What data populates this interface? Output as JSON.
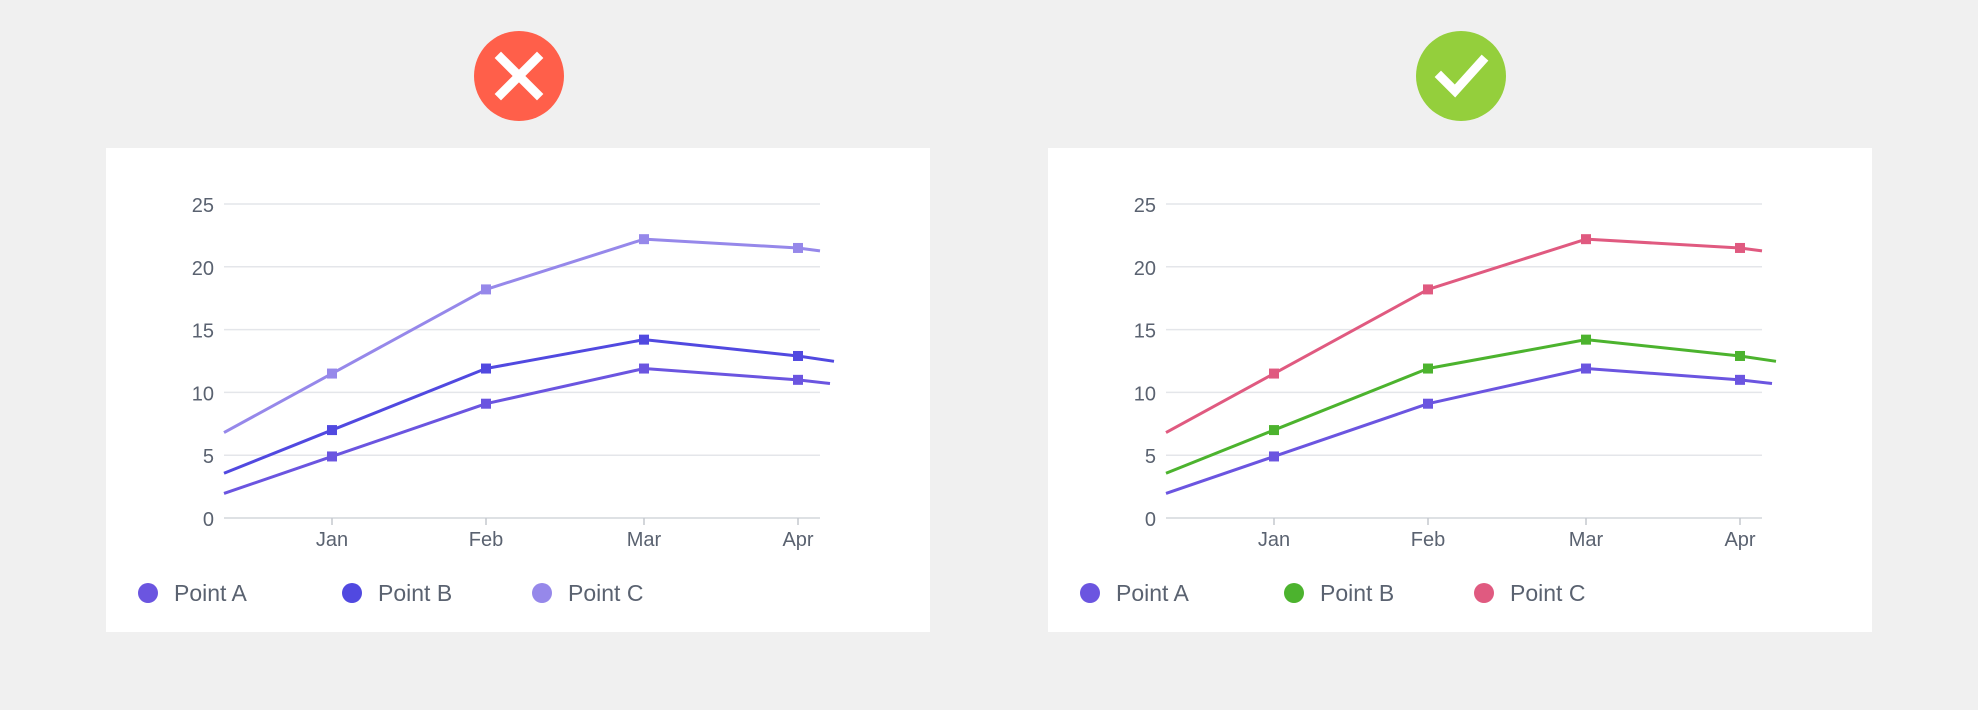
{
  "bad_example": {
    "icon": "cross-icon",
    "badge_color": "#ff5f4a",
    "chart_data": {
      "type": "line",
      "x": [
        "Jan",
        "Feb",
        "Mar",
        "Apr"
      ],
      "ylim": [
        0,
        25
      ],
      "yticks": [
        "0",
        "5",
        "10",
        "15",
        "20",
        "25"
      ],
      "grid": true,
      "legend_position": "bottom-left",
      "series": [
        {
          "name": "Point A",
          "color": "#6b55e0",
          "values": [
            4.9,
            9.1,
            11.9,
            11.0
          ]
        },
        {
          "name": "Point B",
          "color": "#5149e0",
          "values": [
            7.0,
            11.9,
            14.2,
            12.9
          ]
        },
        {
          "name": "Point C",
          "color": "#9688ea",
          "values": [
            11.5,
            18.2,
            22.2,
            21.5
          ]
        }
      ]
    }
  },
  "good_example": {
    "icon": "check-icon",
    "badge_color": "#94cf3c",
    "chart_data": {
      "type": "line",
      "x": [
        "Jan",
        "Feb",
        "Mar",
        "Apr"
      ],
      "ylim": [
        0,
        25
      ],
      "yticks": [
        "0",
        "5",
        "10",
        "15",
        "20",
        "25"
      ],
      "grid": true,
      "legend_position": "bottom-left",
      "series": [
        {
          "name": "Point A",
          "color": "#6b55e0",
          "values": [
            4.9,
            9.1,
            11.9,
            11.0
          ]
        },
        {
          "name": "Point B",
          "color": "#4cb32e",
          "values": [
            7.0,
            11.9,
            14.2,
            12.9
          ]
        },
        {
          "name": "Point C",
          "color": "#e05a80",
          "values": [
            11.5,
            18.2,
            22.2,
            21.5
          ]
        }
      ]
    }
  }
}
